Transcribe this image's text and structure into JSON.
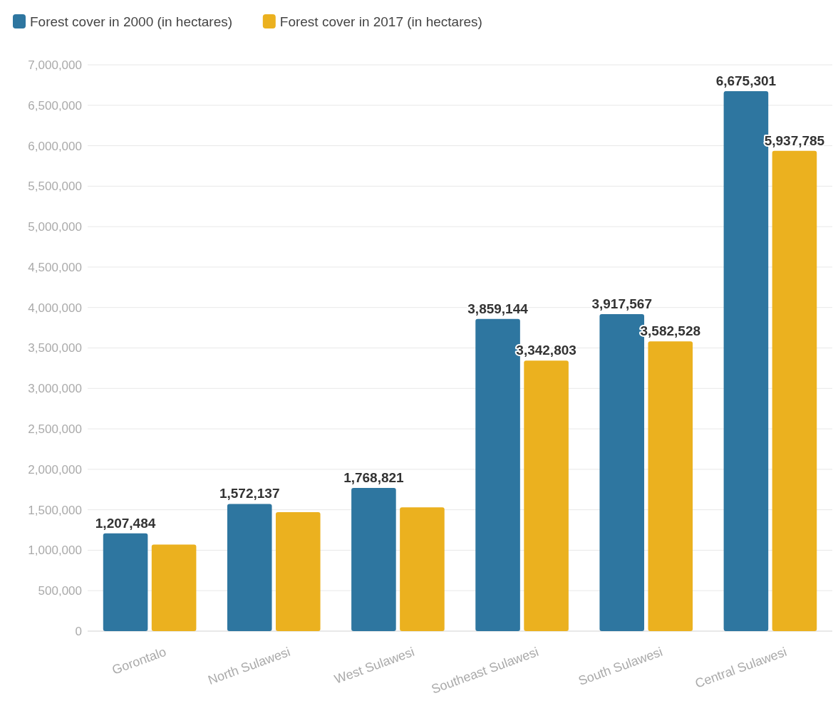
{
  "chart_data": {
    "type": "bar",
    "categories": [
      "Gorontalo",
      "North Sulawesi",
      "West Sulawesi",
      "Southeast Sulawesi",
      "South Sulawesi",
      "Central Sulawesi"
    ],
    "series": [
      {
        "name": "Forest cover in 2000 (in hectares)",
        "color": "#2e76a0",
        "values": [
          1207484,
          1572137,
          1768821,
          3859144,
          3917567,
          6675301
        ],
        "value_labels": [
          "1,207,484",
          "1,572,137",
          "1,768,821",
          "3,859,144",
          "3,917,567",
          "6,675,301"
        ]
      },
      {
        "name": "Forest cover in 2017 (in hectares)",
        "color": "#ebb11f",
        "values": [
          1070000,
          1470000,
          1530000,
          3342803,
          3582528,
          5937785
        ],
        "value_labels": [
          null,
          null,
          null,
          "3,342,803",
          "3,582,528",
          "5,937,785"
        ]
      }
    ],
    "ylim": [
      0,
      7000000
    ],
    "yticks": [
      {
        "value": 0,
        "label": "0"
      },
      {
        "value": 500000,
        "label": "500,000"
      },
      {
        "value": 1000000,
        "label": "1,000,000"
      },
      {
        "value": 1500000,
        "label": "1,500,000"
      },
      {
        "value": 2000000,
        "label": "2,000,000"
      },
      {
        "value": 2500000,
        "label": "2,500,000"
      },
      {
        "value": 3000000,
        "label": "3,000,000"
      },
      {
        "value": 3500000,
        "label": "3,500,000"
      },
      {
        "value": 4000000,
        "label": "4,000,000"
      },
      {
        "value": 4500000,
        "label": "4,500,000"
      },
      {
        "value": 5000000,
        "label": "5,000,000"
      },
      {
        "value": 5500000,
        "label": "5,500,000"
      },
      {
        "value": 6000000,
        "label": "6,000,000"
      },
      {
        "value": 6500000,
        "label": "6,500,000"
      },
      {
        "value": 7000000,
        "label": "7,000,000"
      }
    ],
    "grid": "y",
    "legend": "top left"
  }
}
